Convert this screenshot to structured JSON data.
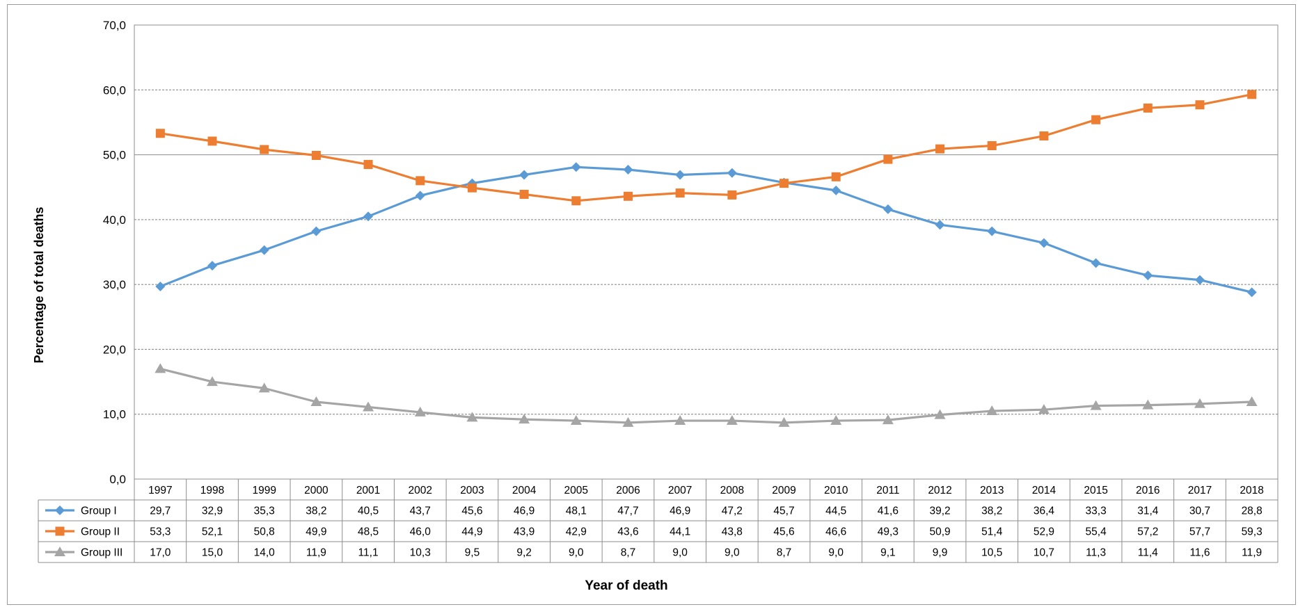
{
  "chart_data": {
    "type": "line",
    "title": "",
    "xlabel": "Year of death",
    "ylabel": "Percentage of total deaths",
    "ylim": [
      0,
      70
    ],
    "yticks": [
      "0,0",
      "10,0",
      "20,0",
      "30,0",
      "40,0",
      "50,0",
      "60,0",
      "70,0"
    ],
    "grid": "horizontal dashed",
    "legend": "data table below plot",
    "categories": [
      "1997",
      "1998",
      "1999",
      "2000",
      "2001",
      "2002",
      "2003",
      "2004",
      "2005",
      "2006",
      "2007",
      "2008",
      "2009",
      "2010",
      "2011",
      "2012",
      "2013",
      "2014",
      "2015",
      "2016",
      "2017",
      "2018"
    ],
    "series": [
      {
        "name": "Group I",
        "color": "#5b9bd5",
        "marker": "diamond",
        "values": [
          29.7,
          32.9,
          35.3,
          38.2,
          40.5,
          43.7,
          45.6,
          46.9,
          48.1,
          47.7,
          46.9,
          47.2,
          45.7,
          44.5,
          41.6,
          39.2,
          38.2,
          36.4,
          33.3,
          31.4,
          30.7,
          28.8
        ],
        "labels": [
          "29,7",
          "32,9",
          "35,3",
          "38,2",
          "40,5",
          "43,7",
          "45,6",
          "46,9",
          "48,1",
          "47,7",
          "46,9",
          "47,2",
          "45,7",
          "44,5",
          "41,6",
          "39,2",
          "38,2",
          "36,4",
          "33,3",
          "31,4",
          "30,7",
          "28,8"
        ]
      },
      {
        "name": "Group II",
        "color": "#ed7d31",
        "marker": "square",
        "values": [
          53.3,
          52.1,
          50.8,
          49.9,
          48.5,
          46.0,
          44.9,
          43.9,
          42.9,
          43.6,
          44.1,
          43.8,
          45.6,
          46.6,
          49.3,
          50.9,
          51.4,
          52.9,
          55.4,
          57.2,
          57.7,
          59.3
        ],
        "labels": [
          "53,3",
          "52,1",
          "50,8",
          "49,9",
          "48,5",
          "46,0",
          "44,9",
          "43,9",
          "42,9",
          "43,6",
          "44,1",
          "43,8",
          "45,6",
          "46,6",
          "49,3",
          "50,9",
          "51,4",
          "52,9",
          "55,4",
          "57,2",
          "57,7",
          "59,3"
        ]
      },
      {
        "name": "Group III",
        "color": "#a5a5a5",
        "marker": "triangle",
        "values": [
          17.0,
          15.0,
          14.0,
          11.9,
          11.1,
          10.3,
          9.5,
          9.2,
          9.0,
          8.7,
          9.0,
          9.0,
          8.7,
          9.0,
          9.1,
          9.9,
          10.5,
          10.7,
          11.3,
          11.4,
          11.6,
          11.9
        ],
        "labels": [
          "17,0",
          "15,0",
          "14,0",
          "11,9",
          "11,1",
          "10,3",
          "9,5",
          "9,2",
          "9,0",
          "8,7",
          "9,0",
          "9,0",
          "8,7",
          "9,0",
          "9,1",
          "9,9",
          "10,5",
          "10,7",
          "11,3",
          "11,4",
          "11,6",
          "11,9"
        ]
      }
    ]
  }
}
